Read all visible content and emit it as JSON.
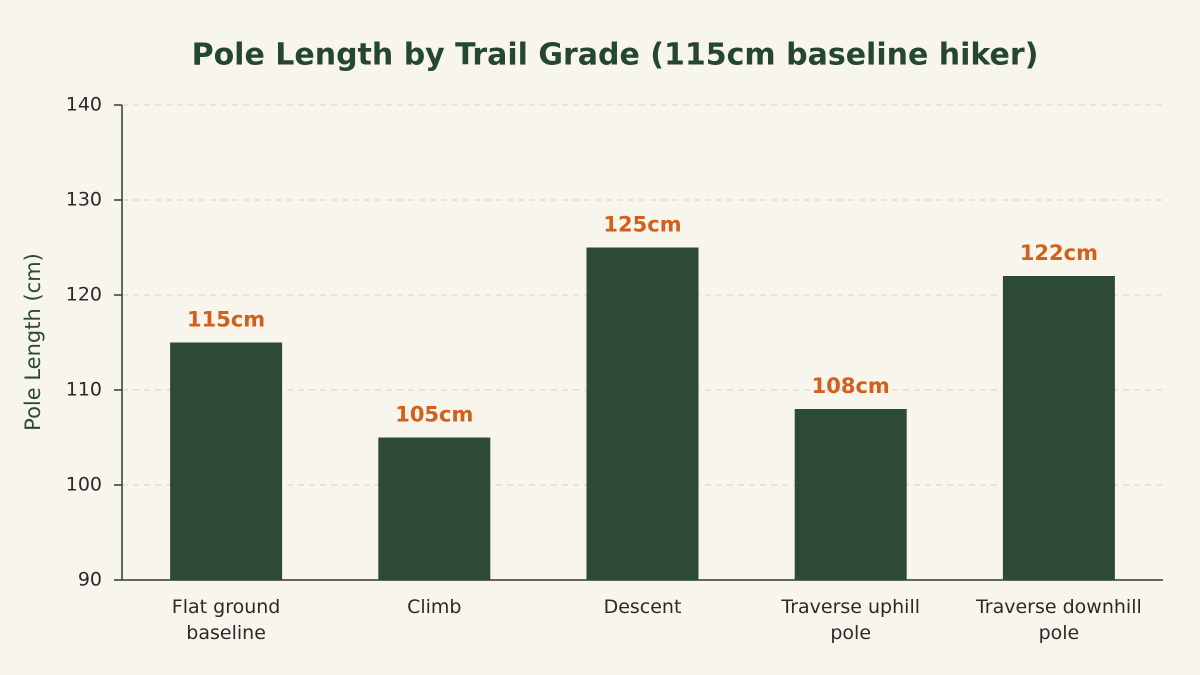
{
  "chart_data": {
    "type": "bar",
    "title": "Pole Length by Trail Grade (115cm baseline hiker)",
    "y_label": "Pole Length (cm)",
    "categories": [
      "Flat ground baseline",
      "Climb",
      "Descent",
      "Traverse uphill pole",
      "Traverse downhill pole"
    ],
    "values": [
      115,
      105,
      125,
      108,
      122
    ],
    "value_labels": [
      "115cm",
      "105cm",
      "125cm",
      "108cm",
      "122cm"
    ],
    "color": "#2d4a38",
    "label_color": "#d2601a",
    "ylim": [
      90,
      140
    ],
    "yticks": [
      90,
      100,
      110,
      120,
      130,
      140
    ],
    "grid": true
  }
}
